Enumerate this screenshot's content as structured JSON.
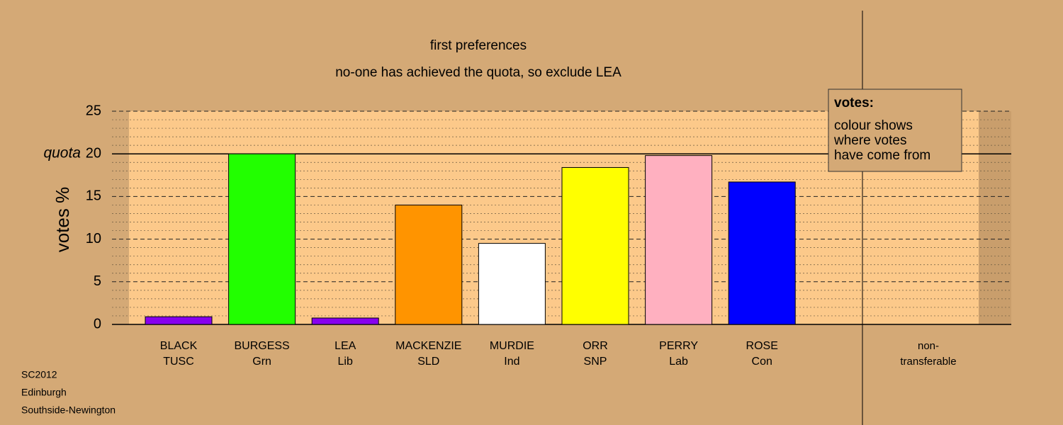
{
  "chart_data": {
    "type": "bar",
    "title": "first preferences",
    "subtitle": "no-one has achieved the quota, so exclude LEA",
    "y_label": "votes %",
    "categories": [
      "BLACK",
      "BURGESS",
      "LEA",
      "MACKENZIE",
      "MURDIE",
      "ORR",
      "PERRY",
      "ROSE"
    ],
    "parties": [
      "TUSC",
      "Grn",
      "Lib",
      "SLD",
      "Ind",
      "SNP",
      "Lab",
      "Con"
    ],
    "values": [
      0.9,
      20.0,
      0.75,
      14.0,
      9.5,
      18.4,
      19.8,
      16.7
    ],
    "colors": [
      "#8800EE",
      "#22FF00",
      "#8800EE",
      "#FF9400",
      "#FFFFFF",
      "#FFFF00",
      "#FFB0C0",
      "#0000FF"
    ],
    "extra_column": [
      "non-",
      "transferable"
    ],
    "ylim": [
      0,
      25
    ],
    "yticks": [
      0,
      5,
      10,
      15,
      20,
      25
    ],
    "minor_yticks": [
      1,
      2,
      3,
      4,
      6,
      7,
      8,
      9,
      11,
      12,
      13,
      14,
      16,
      17,
      18,
      19,
      21,
      22,
      23,
      24
    ],
    "quota": {
      "value": 20,
      "label": "quota"
    },
    "legend": {
      "title": "votes:",
      "lines": [
        "colour shows",
        "where votes",
        "have come from"
      ]
    },
    "footnotes": [
      "SC2012",
      "Edinburgh",
      "Southside-Newington"
    ],
    "grid": true
  }
}
